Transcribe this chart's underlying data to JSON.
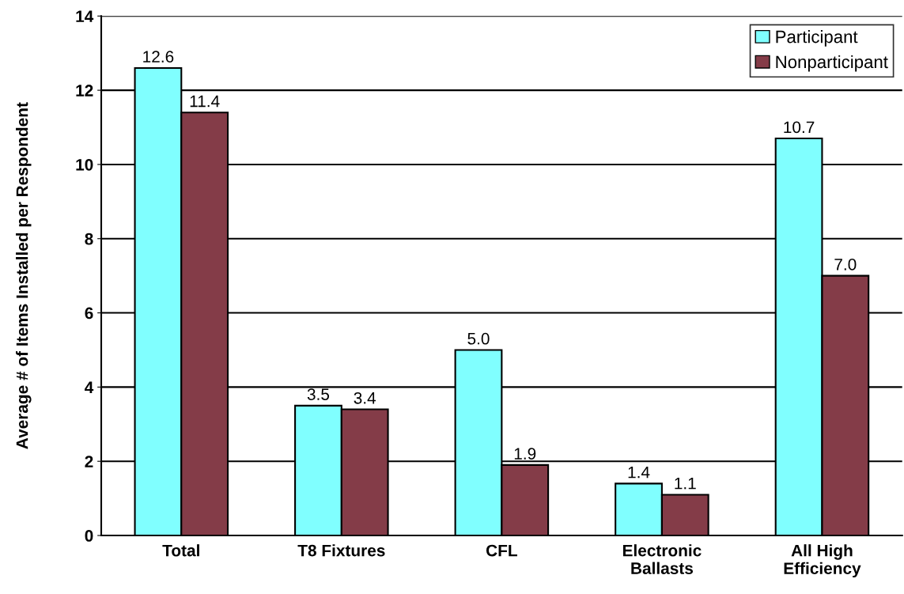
{
  "chart_data": {
    "type": "bar",
    "ylabel": "Average # of Items Installed per Respondent",
    "categories": [
      "Total",
      "T8 Fixtures",
      "CFL",
      "Electronic\nBallasts",
      "All High\nEfficiency"
    ],
    "series": [
      {
        "name": "Participant",
        "color": "#80ffff",
        "values": [
          12.6,
          3.5,
          5.0,
          1.4,
          10.7
        ],
        "value_labels": [
          "12.6",
          "3.5",
          "5.0",
          "1.4",
          "10.7"
        ]
      },
      {
        "name": "Nonparticipant",
        "color": "#843c48",
        "values": [
          11.4,
          3.4,
          1.9,
          1.1,
          7.0
        ],
        "value_labels": [
          "11.4",
          "3.4",
          "1.9",
          "1.1",
          "7.0"
        ]
      }
    ],
    "ylim": [
      0,
      14
    ],
    "yticks": [
      0,
      2,
      4,
      6,
      8,
      10,
      12,
      14
    ],
    "grid": "y",
    "legend": "top right"
  }
}
